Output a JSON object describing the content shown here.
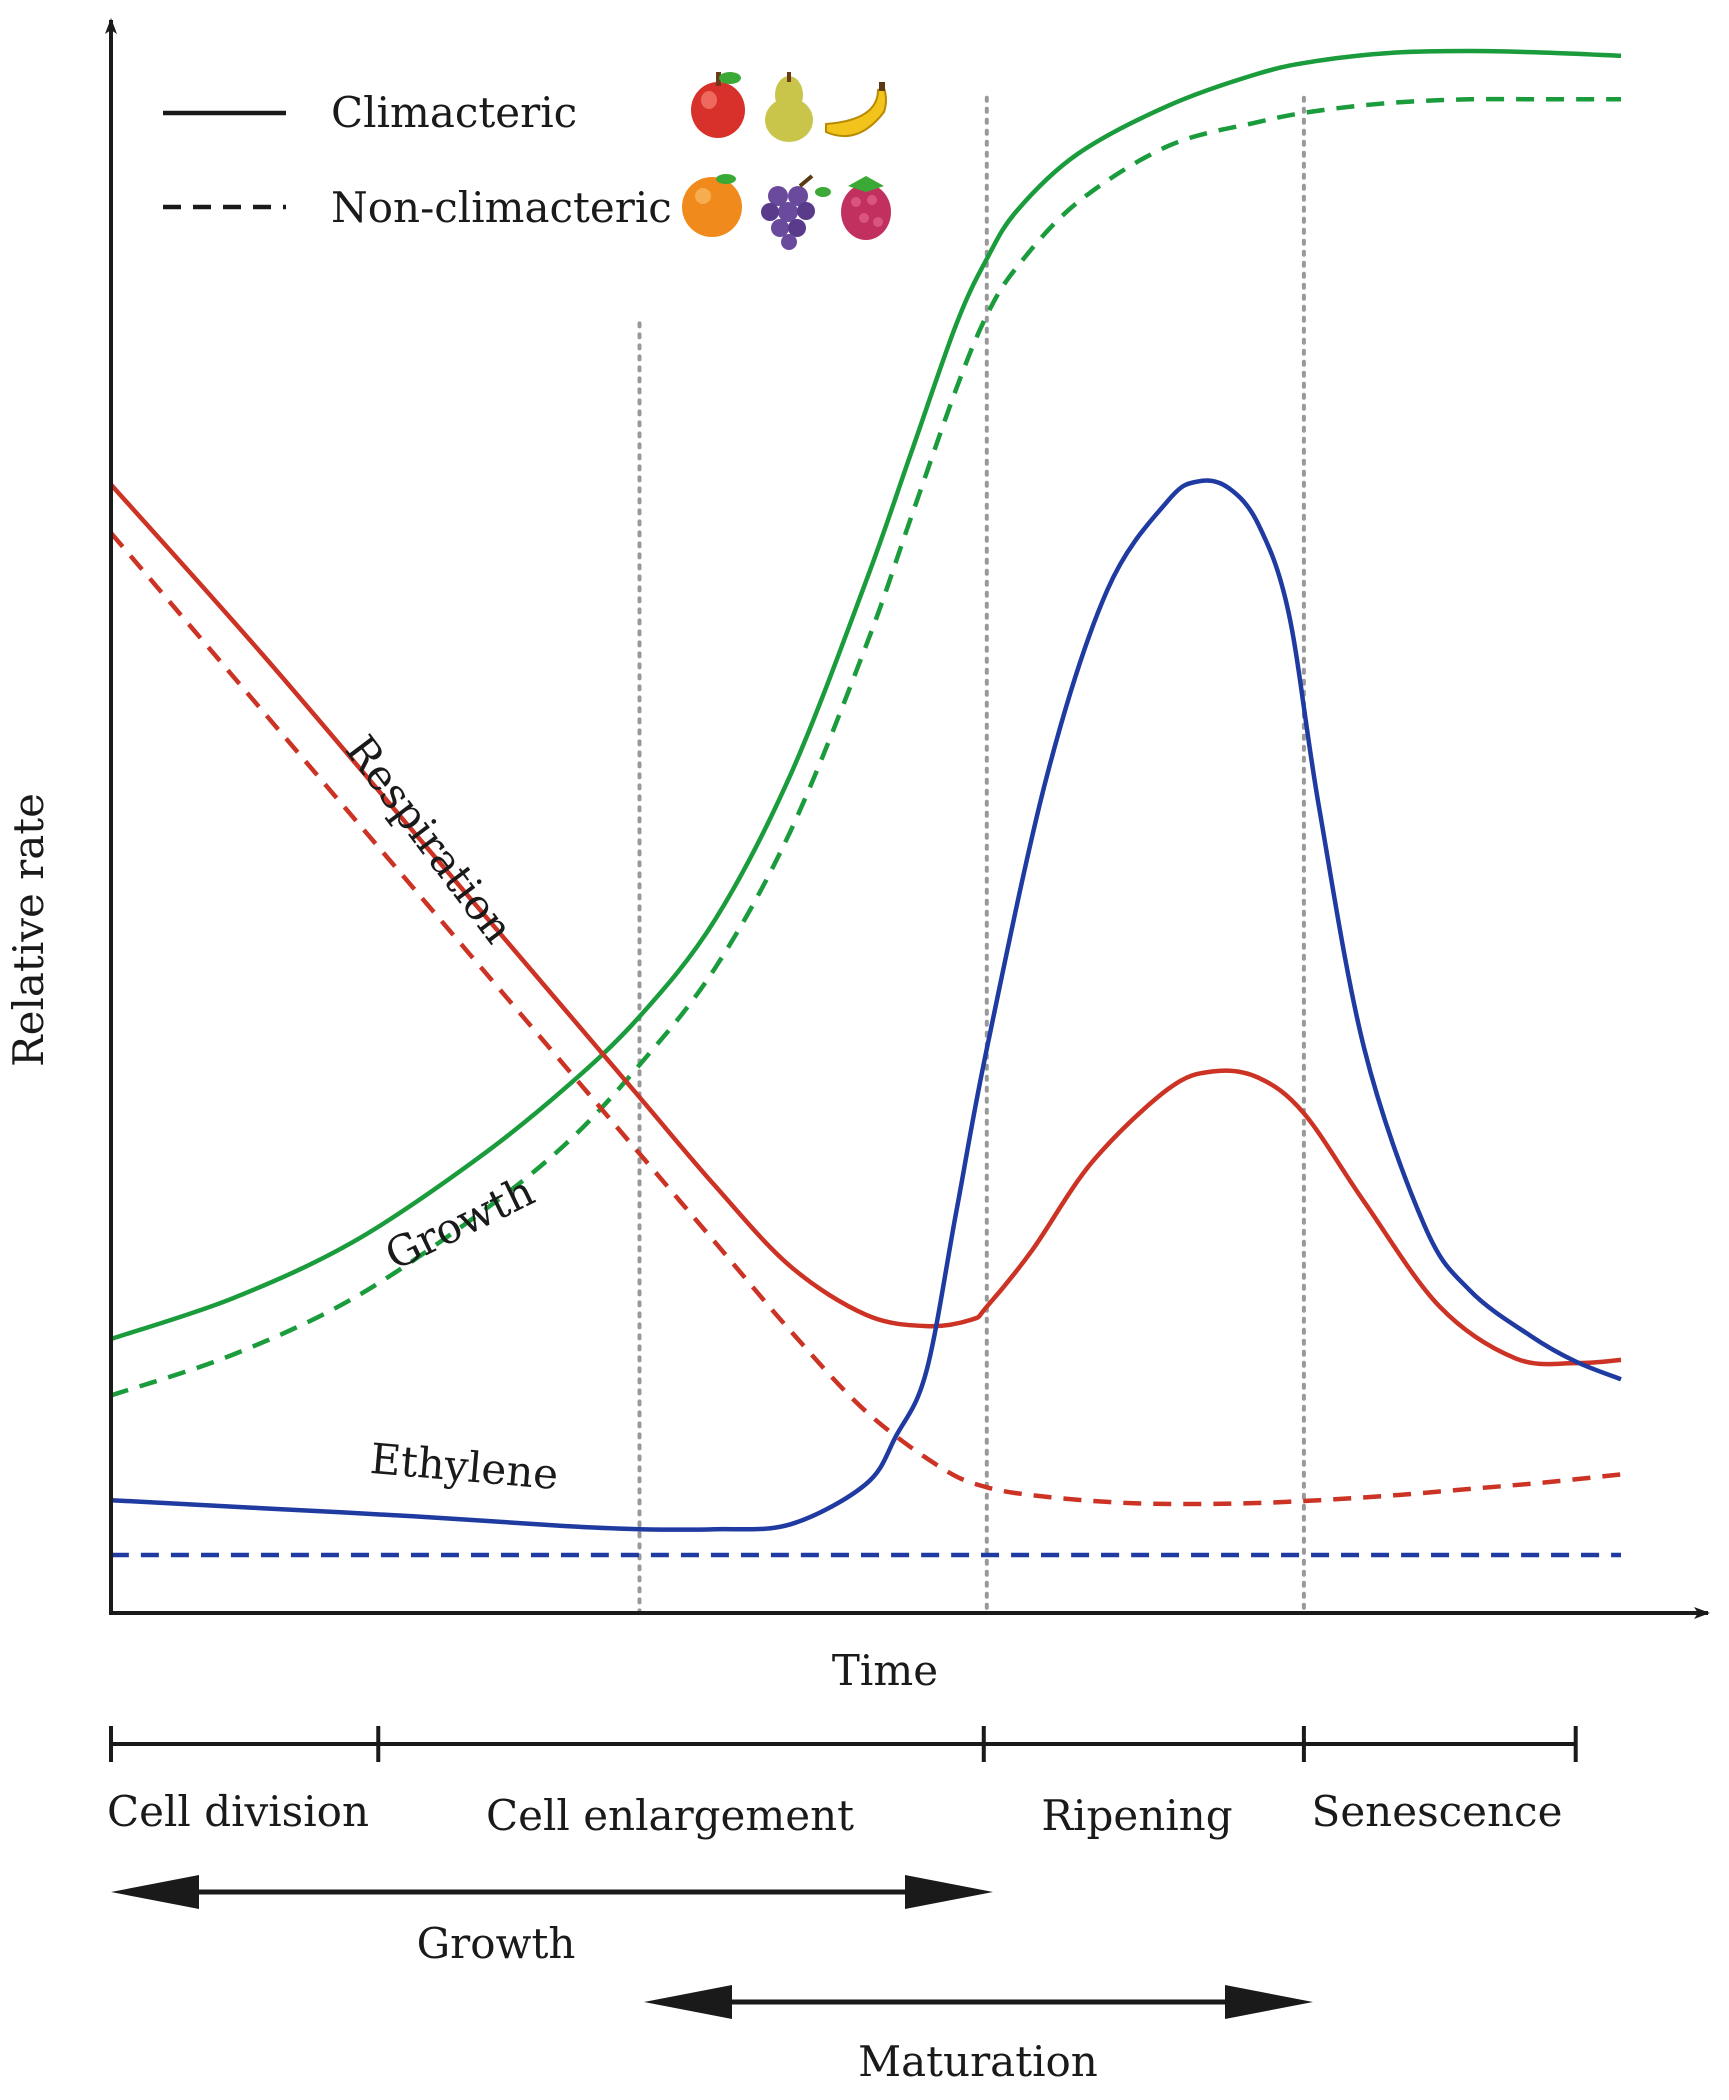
{
  "chart_data": {
    "type": "line",
    "title": "",
    "xlabel": "Time",
    "ylabel": "Relative rate",
    "xlim": [
      0,
      100
    ],
    "ylim": [
      0,
      100
    ],
    "colors": {
      "growth": "#1a9b3c",
      "respiration": "#cc3325",
      "ethylene": "#1f3aa0",
      "axis": "#1a1a1a",
      "gridline": "#999999"
    },
    "legend": {
      "placement": "top-left",
      "entries": [
        {
          "label": "Climacteric",
          "style": "solid",
          "fruits": [
            "apple",
            "pear",
            "banana"
          ]
        },
        {
          "label": "Non-climacteric",
          "style": "dashed",
          "fruits": [
            "orange",
            "grapes",
            "raspberry"
          ]
        }
      ]
    },
    "curve_labels": [
      {
        "text": "Respiration",
        "series": "Respiration",
        "x": 22,
        "y": 66
      },
      {
        "text": "Growth",
        "series": "Growth",
        "x": 23.5,
        "y": 30
      },
      {
        "text": "Ethylene",
        "series": "Ethylene",
        "x": 23,
        "y": 9
      }
    ],
    "stage_boundaries": [
      0,
      17.7,
      57.8,
      79,
      97
    ],
    "phase_lines": [
      35,
      58,
      79
    ],
    "series": [
      {
        "name": "Growth",
        "group": "Climacteric",
        "color": "#1a9b3c",
        "style": "solid",
        "x": [
          0,
          8,
          16,
          24,
          30,
          35,
          40,
          45,
          50,
          53,
          56,
          58,
          60,
          64,
          70,
          76,
          80,
          85,
          90,
          95,
          100
        ],
        "y": [
          17,
          19.5,
          23,
          28,
          32.5,
          37,
          43,
          52,
          64,
          72,
          80,
          84,
          87,
          90.5,
          93.5,
          95.5,
          96.3,
          96.8,
          96.9,
          96.8,
          96.6
        ]
      },
      {
        "name": "Growth",
        "group": "Non-climacteric",
        "color": "#1a9b3c",
        "style": "dashed",
        "x": [
          0,
          8,
          16,
          24,
          30,
          35,
          40,
          45,
          50,
          53,
          56,
          58,
          60,
          64,
          70,
          76,
          80,
          85,
          90,
          95,
          100
        ],
        "y": [
          13.5,
          16,
          19.5,
          24.5,
          29,
          34,
          40,
          48.5,
          60,
          68,
          76,
          80.5,
          83.5,
          87.5,
          91,
          92.5,
          93.2,
          93.7,
          93.9,
          93.9,
          93.9
        ]
      },
      {
        "name": "Respiration",
        "group": "Climacteric",
        "color": "#cc3325",
        "style": "solid",
        "x": [
          0,
          10,
          20,
          30,
          35,
          40,
          45,
          50,
          54,
          57,
          58,
          61,
          65,
          70,
          73,
          76,
          79,
          83,
          88,
          93,
          97,
          100
        ],
        "y": [
          70,
          59.5,
          48.5,
          37.5,
          32,
          26.5,
          21.5,
          18.5,
          17.8,
          18.2,
          19,
          22.5,
          28,
          32.5,
          33.6,
          33.2,
          31,
          25.5,
          19,
          15.8,
          15.5,
          15.7
        ]
      },
      {
        "name": "Respiration",
        "group": "Non-climacteric",
        "color": "#cc3325",
        "style": "dashed",
        "x": [
          0,
          10,
          20,
          30,
          35,
          40,
          45,
          50,
          55,
          58,
          62,
          68,
          75,
          80,
          85,
          90,
          95,
          100
        ],
        "y": [
          67,
          56,
          45,
          34,
          28.5,
          23,
          17.5,
          12.5,
          9,
          7.8,
          7.2,
          6.8,
          6.8,
          7,
          7.3,
          7.7,
          8.1,
          8.6
        ]
      },
      {
        "name": "Ethylene",
        "group": "Climacteric",
        "color": "#1f3aa0",
        "style": "solid",
        "x": [
          0,
          10,
          20,
          30,
          35,
          40,
          45,
          50,
          52,
          54,
          56,
          58,
          62,
          66,
          70,
          72,
          74,
          76,
          78,
          80,
          83,
          87,
          90,
          94,
          97,
          100
        ],
        "y": [
          7,
          6.5,
          6,
          5.4,
          5.2,
          5.2,
          5.5,
          8,
          11,
          15,
          25,
          35,
          52,
          63.5,
          69,
          70.2,
          69.8,
          67.5,
          62,
          50,
          35,
          24,
          20,
          17.2,
          15.6,
          14.5
        ]
      },
      {
        "name": "Ethylene",
        "group": "Non-climacteric",
        "color": "#1f3aa0",
        "style": "dashed",
        "x": [
          0,
          100
        ],
        "y": [
          3.6,
          3.6
        ]
      }
    ]
  },
  "stages": [
    "Cell division",
    "Cell enlargement",
    "Ripening",
    "Senescence"
  ],
  "spans": [
    {
      "label": "Growth",
      "from": 0,
      "to": 57.8
    },
    {
      "label": "Maturation",
      "from": 35.5,
      "to": 79
    }
  ]
}
